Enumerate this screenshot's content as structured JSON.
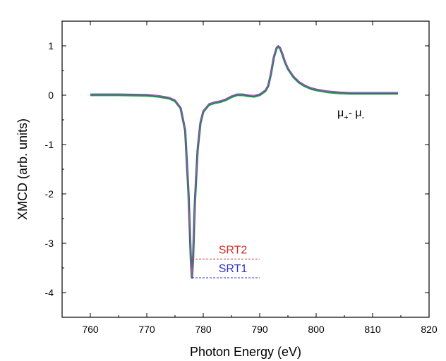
{
  "chart_data": {
    "type": "line",
    "title": "",
    "xlabel": "Photon Energy (eV)",
    "ylabel": "XMCD (arb. units)",
    "xlim": [
      755,
      820
    ],
    "ylim": [
      -4.5,
      1.5
    ],
    "xticks": [
      760,
      770,
      780,
      790,
      800,
      810,
      820
    ],
    "yticks": [
      1,
      0,
      -1,
      -2,
      -3,
      -4
    ],
    "grid": false,
    "legend": "none",
    "colors": {
      "series_blue": "#2c3fb1",
      "series_green": "#17a34a",
      "series_magenta": "#c8559a",
      "srt1": "#2f34c9",
      "srt2": "#d42a2a"
    },
    "series": [
      {
        "x": [
          760,
          765,
          770,
          772,
          774,
          775,
          776,
          776.8,
          777.4,
          777.8,
          778.0,
          778.2,
          778.5,
          779.0,
          779.5,
          780,
          781,
          782,
          783,
          784,
          785,
          786,
          787,
          788,
          789,
          790,
          791,
          791.5,
          792,
          792.5,
          793,
          793.3,
          793.6,
          794,
          794.5,
          795,
          796,
          797,
          798,
          799,
          800,
          802,
          804,
          806,
          808,
          810,
          812,
          814.5
        ],
        "values": [
          0.02,
          0.02,
          0.01,
          -0.01,
          -0.05,
          -0.1,
          -0.25,
          -0.7,
          -2.0,
          -3.3,
          -3.68,
          -3.3,
          -2.2,
          -1.1,
          -0.55,
          -0.32,
          -0.18,
          -0.14,
          -0.12,
          -0.08,
          -0.02,
          0.02,
          0.02,
          0.0,
          -0.01,
          0.02,
          0.1,
          0.2,
          0.45,
          0.78,
          0.97,
          1.0,
          0.97,
          0.85,
          0.68,
          0.55,
          0.38,
          0.27,
          0.2,
          0.15,
          0.12,
          0.08,
          0.06,
          0.05,
          0.05,
          0.05,
          0.05,
          0.05
        ]
      }
    ],
    "annotations": {
      "mu_text": "μ+- μ-",
      "srt1": {
        "label": "SRT1",
        "y": -3.7,
        "x_start": 778,
        "x_end": 790
      },
      "srt2": {
        "label": "SRT2",
        "y": -3.32,
        "x_start": 778,
        "x_end": 790
      }
    }
  }
}
